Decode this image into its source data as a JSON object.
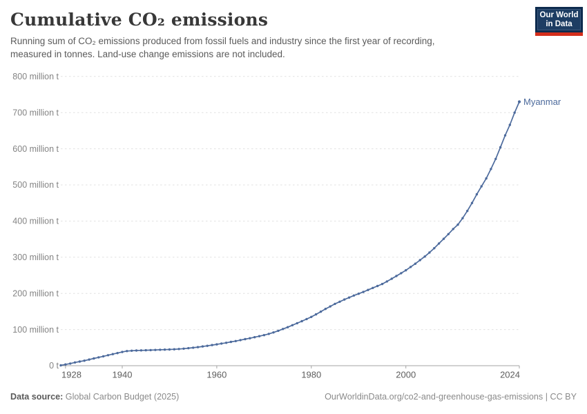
{
  "header": {
    "title": "Cumulative CO₂ emissions",
    "subtitle_lines": [
      "Running sum of CO₂ emissions produced from fossil fuels and industry since the first year of recording,",
      "measured in tonnes. Land-use change emissions are not included."
    ],
    "logo_line1": "Our World",
    "logo_line2": "in Data"
  },
  "footer": {
    "source_label": "Data source:",
    "source_text": "Global Carbon Budget (2025)",
    "citation": "OurWorldinData.org/co2-and-greenhouse-gas-emissions | CC BY"
  },
  "colors": {
    "line": "#4C6A9C",
    "grid": "#e0e0e0",
    "axis": "#a3a3a3",
    "y_label": "#848484",
    "x_label": "#5d5d5d",
    "logo_bg": "#0d2b4e",
    "logo_red": "#d32e1b"
  },
  "chart_data": {
    "type": "line",
    "title": "Cumulative CO₂ emissions",
    "entity": "Myanmar",
    "end_label": "Myanmar",
    "unit": "million tonnes",
    "xlabel": "",
    "ylabel": "",
    "x_range": [
      1927,
      2024
    ],
    "ylim": [
      0,
      800
    ],
    "grid": "horizontal-dashed",
    "legend_position": "end-of-line",
    "yticks": [
      {
        "value": 0,
        "label": "0 t"
      },
      {
        "value": 100,
        "label": "100 million t"
      },
      {
        "value": 200,
        "label": "200 million t"
      },
      {
        "value": 300,
        "label": "300 million t"
      },
      {
        "value": 400,
        "label": "400 million t"
      },
      {
        "value": 500,
        "label": "500 million t"
      },
      {
        "value": 600,
        "label": "600 million t"
      },
      {
        "value": 700,
        "label": "700 million t"
      },
      {
        "value": 800,
        "label": "800 million t"
      }
    ],
    "xticks": [
      1928,
      1940,
      1960,
      1980,
      2000,
      2024
    ],
    "series": [
      {
        "name": "Myanmar",
        "color": "#4C6A9C",
        "points": [
          [
            1927,
            1
          ],
          [
            1928,
            3.5
          ],
          [
            1929,
            6
          ],
          [
            1930,
            9
          ],
          [
            1931,
            11.5
          ],
          [
            1932,
            14
          ],
          [
            1933,
            17
          ],
          [
            1934,
            20
          ],
          [
            1935,
            23
          ],
          [
            1936,
            26
          ],
          [
            1937,
            29
          ],
          [
            1938,
            32
          ],
          [
            1939,
            35
          ],
          [
            1940,
            38
          ],
          [
            1941,
            40.5
          ],
          [
            1942,
            41.5
          ],
          [
            1943,
            42
          ],
          [
            1944,
            42.4
          ],
          [
            1945,
            42.8
          ],
          [
            1946,
            43.2
          ],
          [
            1947,
            43.6
          ],
          [
            1948,
            44
          ],
          [
            1949,
            44.4
          ],
          [
            1950,
            44.8
          ],
          [
            1951,
            45.4
          ],
          [
            1952,
            46.2
          ],
          [
            1953,
            47.2
          ],
          [
            1954,
            48.4
          ],
          [
            1955,
            49.8
          ],
          [
            1956,
            51.4
          ],
          [
            1957,
            53.2
          ],
          [
            1958,
            55
          ],
          [
            1959,
            57
          ],
          [
            1960,
            59
          ],
          [
            1961,
            61.2
          ],
          [
            1962,
            63.4
          ],
          [
            1963,
            65.8
          ],
          [
            1964,
            68.2
          ],
          [
            1965,
            70.8
          ],
          [
            1966,
            73.4
          ],
          [
            1967,
            76
          ],
          [
            1968,
            78.8
          ],
          [
            1969,
            81.6
          ],
          [
            1970,
            84.6
          ],
          [
            1971,
            88
          ],
          [
            1972,
            92
          ],
          [
            1973,
            96.5
          ],
          [
            1974,
            101.5
          ],
          [
            1975,
            106.5
          ],
          [
            1976,
            112
          ],
          [
            1977,
            117.5
          ],
          [
            1978,
            123
          ],
          [
            1979,
            129
          ],
          [
            1980,
            135
          ],
          [
            1981,
            142
          ],
          [
            1982,
            149.5
          ],
          [
            1983,
            157
          ],
          [
            1984,
            164
          ],
          [
            1985,
            171
          ],
          [
            1986,
            177
          ],
          [
            1987,
            183
          ],
          [
            1988,
            188.5
          ],
          [
            1989,
            194
          ],
          [
            1990,
            199
          ],
          [
            1991,
            204
          ],
          [
            1992,
            209.5
          ],
          [
            1993,
            215
          ],
          [
            1994,
            220.5
          ],
          [
            1995,
            226
          ],
          [
            1996,
            233
          ],
          [
            1997,
            240.5
          ],
          [
            1998,
            248
          ],
          [
            1999,
            256
          ],
          [
            2000,
            264
          ],
          [
            2001,
            273
          ],
          [
            2002,
            282
          ],
          [
            2003,
            292
          ],
          [
            2004,
            302
          ],
          [
            2005,
            313
          ],
          [
            2006,
            325
          ],
          [
            2007,
            338
          ],
          [
            2008,
            351
          ],
          [
            2009,
            364
          ],
          [
            2010,
            378
          ],
          [
            2011,
            390
          ],
          [
            2012,
            408
          ],
          [
            2013,
            428
          ],
          [
            2014,
            450
          ],
          [
            2015,
            474
          ],
          [
            2016,
            496
          ],
          [
            2017,
            518
          ],
          [
            2018,
            544
          ],
          [
            2019,
            572
          ],
          [
            2020,
            604
          ],
          [
            2021,
            637
          ],
          [
            2022,
            666
          ],
          [
            2023,
            700
          ],
          [
            2024,
            730
          ]
        ]
      }
    ]
  }
}
